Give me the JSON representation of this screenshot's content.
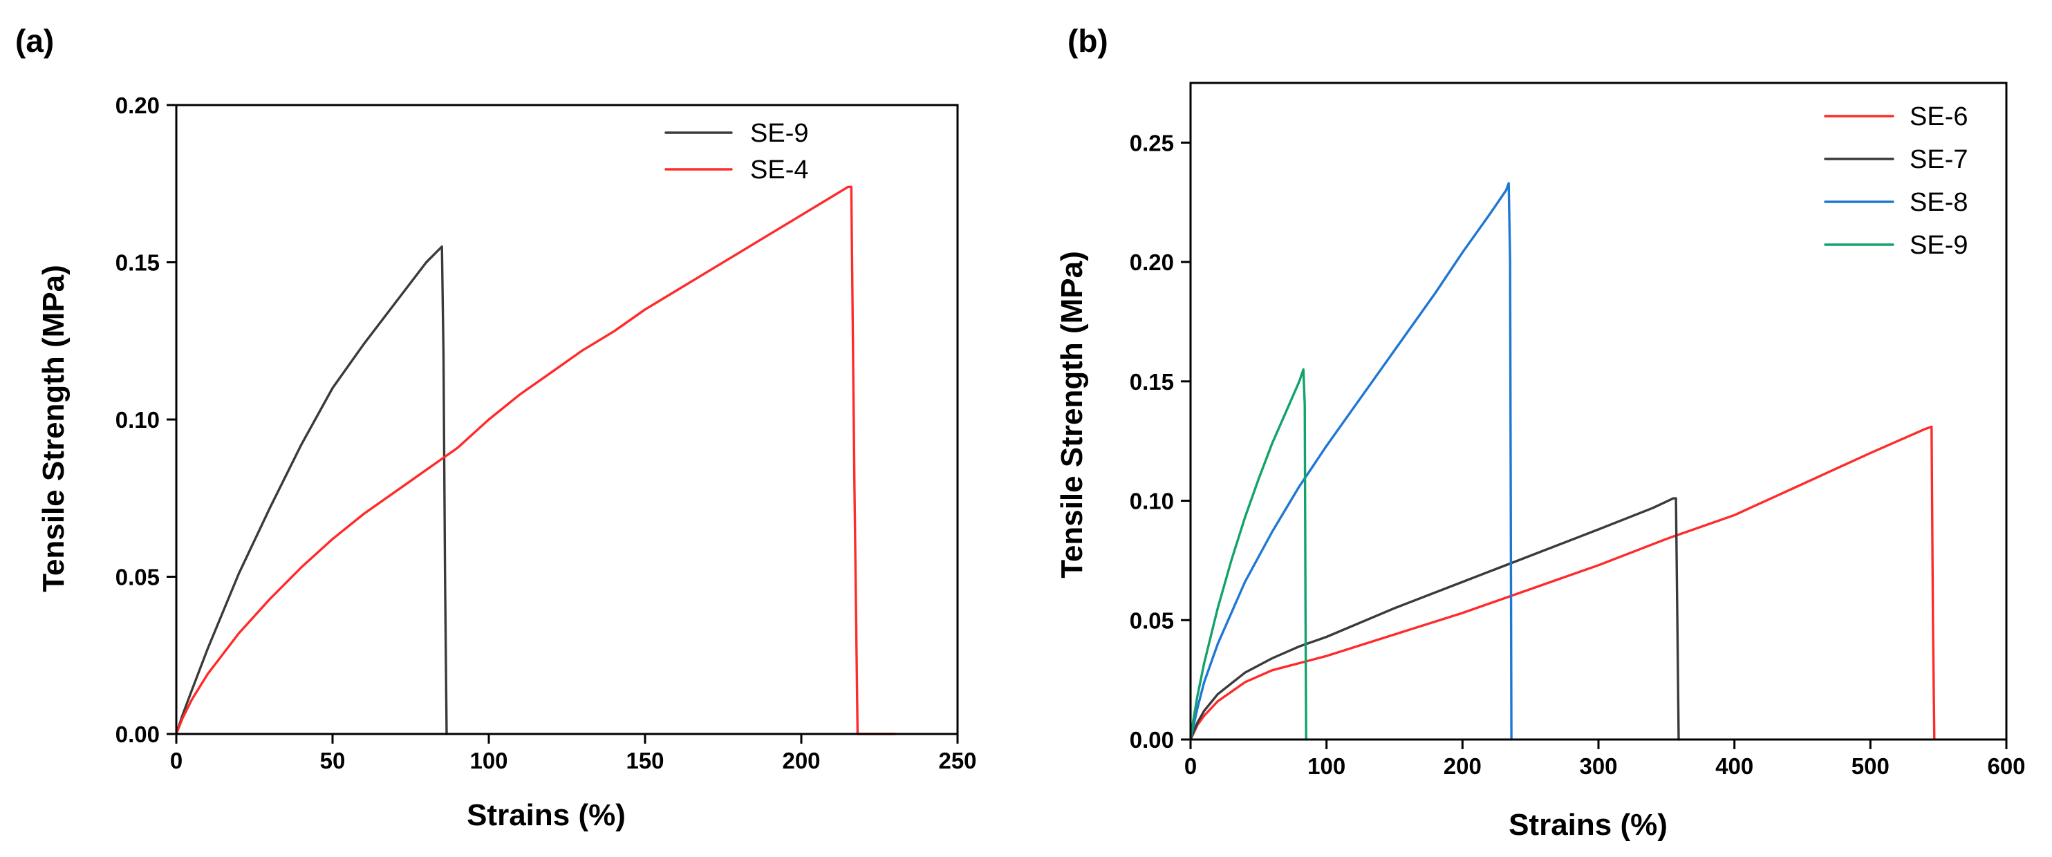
{
  "chart_data": [
    {
      "panel": "(a)",
      "type": "line",
      "title": "",
      "xlabel": "Strains (%)",
      "ylabel": "Tensile Strength (MPa)",
      "xlim": [
        0,
        250
      ],
      "ylim": [
        0,
        0.2
      ],
      "xticks": [
        0,
        50,
        100,
        150,
        200,
        250
      ],
      "xtick_labels": [
        "0",
        "50",
        "100",
        "150",
        "200",
        "250"
      ],
      "yticks": [
        0,
        0.05,
        0.1,
        0.15,
        0.2
      ],
      "ytick_labels": [
        "0.00",
        "0.05",
        "0.10",
        "0.15",
        "0.20"
      ],
      "grid": false,
      "legend_position": "top-right",
      "series": [
        {
          "name": "SE-9",
          "color": "#3a3a3a",
          "x": [
            0,
            2,
            5,
            10,
            15,
            20,
            30,
            40,
            50,
            60,
            70,
            80,
            85,
            85.5,
            86,
            86.5
          ],
          "y": [
            0,
            0.006,
            0.014,
            0.027,
            0.039,
            0.051,
            0.072,
            0.092,
            0.11,
            0.124,
            0.137,
            0.15,
            0.155,
            0.12,
            0.05,
            0
          ]
        },
        {
          "name": "SE-4",
          "color": "#ff2a2a",
          "x": [
            0,
            2,
            5,
            10,
            20,
            30,
            40,
            50,
            60,
            70,
            80,
            90,
            100,
            110,
            120,
            130,
            140,
            150,
            160,
            170,
            180,
            190,
            200,
            210,
            215,
            216,
            217,
            218,
            220,
            230
          ],
          "y": [
            0,
            0.005,
            0.011,
            0.019,
            0.032,
            0.043,
            0.053,
            0.062,
            0.07,
            0.077,
            0.084,
            0.091,
            0.1,
            0.108,
            0.115,
            0.122,
            0.128,
            0.135,
            0.141,
            0.147,
            0.153,
            0.159,
            0.165,
            0.171,
            0.174,
            0.174,
            0.08,
            0,
            0,
            0
          ]
        }
      ]
    },
    {
      "panel": "(b)",
      "type": "line",
      "title": "",
      "xlabel": "Strains (%)",
      "ylabel": "Tensile Strength (MPa)",
      "xlim": [
        0,
        600
      ],
      "ylim": [
        0,
        0.275
      ],
      "xticks": [
        0,
        100,
        200,
        300,
        400,
        500,
        600
      ],
      "xtick_labels": [
        "0",
        "100",
        "200",
        "300",
        "400",
        "500",
        "600"
      ],
      "yticks": [
        0,
        0.05,
        0.1,
        0.15,
        0.2,
        0.25
      ],
      "ytick_labels": [
        "0.00",
        "0.05",
        "0.10",
        "0.15",
        "0.20",
        "0.25"
      ],
      "grid": false,
      "legend_position": "top-right",
      "series": [
        {
          "name": "SE-6",
          "color": "#ff2a2a",
          "x": [
            0,
            5,
            10,
            20,
            40,
            60,
            80,
            100,
            150,
            200,
            250,
            300,
            350,
            400,
            450,
            500,
            540,
            545,
            546,
            547
          ],
          "y": [
            0,
            0.006,
            0.01,
            0.016,
            0.024,
            0.029,
            0.032,
            0.035,
            0.044,
            0.053,
            0.063,
            0.073,
            0.084,
            0.094,
            0.107,
            0.12,
            0.13,
            0.131,
            0.05,
            0
          ]
        },
        {
          "name": "SE-7",
          "color": "#3a3a3a",
          "x": [
            0,
            5,
            10,
            20,
            40,
            60,
            80,
            100,
            150,
            200,
            250,
            300,
            340,
            355,
            357,
            358,
            359
          ],
          "y": [
            0,
            0.007,
            0.012,
            0.019,
            0.028,
            0.034,
            0.039,
            0.043,
            0.055,
            0.066,
            0.077,
            0.088,
            0.097,
            0.101,
            0.101,
            0.05,
            0
          ]
        },
        {
          "name": "SE-8",
          "color": "#1f77d4",
          "x": [
            0,
            5,
            10,
            20,
            40,
            60,
            80,
            100,
            120,
            150,
            180,
            200,
            220,
            232,
            234,
            235,
            236
          ],
          "y": [
            0,
            0.013,
            0.024,
            0.04,
            0.066,
            0.087,
            0.106,
            0.123,
            0.139,
            0.163,
            0.187,
            0.204,
            0.22,
            0.23,
            0.233,
            0.2,
            0
          ]
        },
        {
          "name": "SE-9",
          "color": "#12a36a",
          "x": [
            0,
            2,
            5,
            10,
            20,
            30,
            40,
            50,
            60,
            70,
            80,
            83,
            84,
            84.5,
            85
          ],
          "y": [
            0,
            0.008,
            0.018,
            0.032,
            0.055,
            0.075,
            0.093,
            0.109,
            0.124,
            0.137,
            0.15,
            0.155,
            0.14,
            0.06,
            0
          ]
        }
      ]
    }
  ]
}
